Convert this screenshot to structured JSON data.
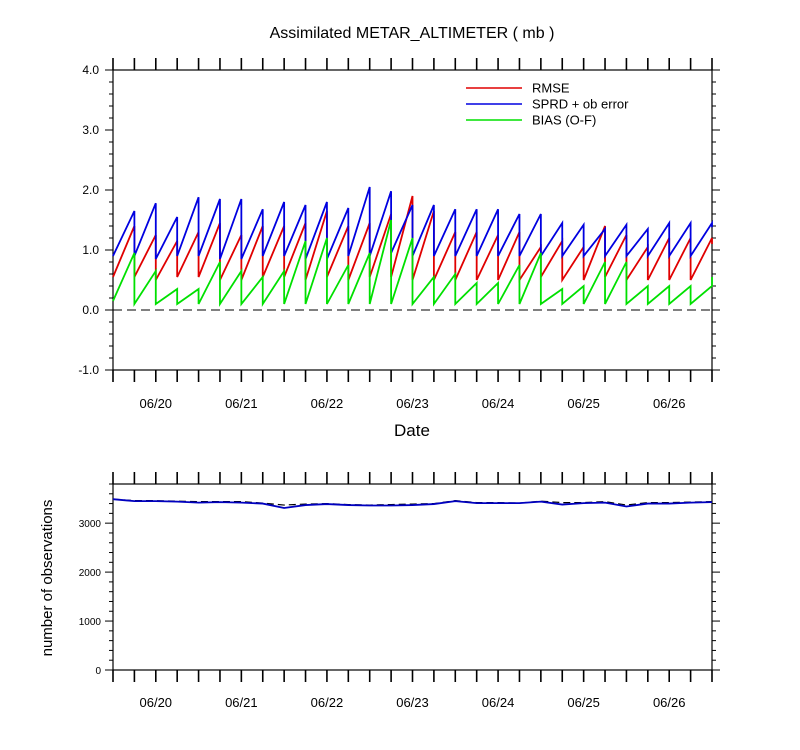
{
  "chart_data": [
    {
      "type": "line",
      "title": "Assimilated METAR_ALTIMETER ( mb )",
      "xlabel": "Date",
      "ylabel": "",
      "ylim": [
        -1.0,
        4.0
      ],
      "yticks": [
        "-1.0",
        "0.0",
        "1.0",
        "2.0",
        "3.0",
        "4.0"
      ],
      "xlim": [
        "06/19 12:00",
        "06/26 12:00"
      ],
      "xticks": [
        "06/20",
        "06/21",
        "06/22",
        "06/23",
        "06/24",
        "06/25",
        "06/26"
      ],
      "reference_line": {
        "y": 0.0,
        "style": "dashed"
      },
      "legend": {
        "placement": "top-right"
      },
      "time_series": {
        "start": "06/19 12:00",
        "step_hours": 6
      },
      "series": [
        {
          "name": "RMSE",
          "color": "#e00000",
          "pairs": [
            [
              0.55,
              1.4
            ],
            [
              0.55,
              1.25
            ],
            [
              0.5,
              1.15
            ],
            [
              0.55,
              1.3
            ],
            [
              0.55,
              1.45
            ],
            [
              0.5,
              1.25
            ],
            [
              0.5,
              1.4
            ],
            [
              0.55,
              1.4
            ],
            [
              0.55,
              1.45
            ],
            [
              0.5,
              1.65
            ],
            [
              0.55,
              1.4
            ],
            [
              0.5,
              1.45
            ],
            [
              0.55,
              1.6
            ],
            [
              0.55,
              1.9
            ],
            [
              0.5,
              1.65
            ],
            [
              0.5,
              1.3
            ],
            [
              0.5,
              1.3
            ],
            [
              0.5,
              1.25
            ],
            [
              0.5,
              1.3
            ],
            [
              0.5,
              1.05
            ],
            [
              0.55,
              1.15
            ],
            [
              0.5,
              1.05
            ],
            [
              0.5,
              1.4
            ],
            [
              0.55,
              1.25
            ],
            [
              0.5,
              1.05
            ],
            [
              0.5,
              1.2
            ],
            [
              0.5,
              1.2
            ],
            [
              0.5,
              1.2
            ]
          ],
          "last": 1.1
        },
        {
          "name": "SPRD + ob error",
          "color": "#0000e0",
          "pairs": [
            [
              0.9,
              1.65
            ],
            [
              0.9,
              1.78
            ],
            [
              0.85,
              1.55
            ],
            [
              0.9,
              1.88
            ],
            [
              0.9,
              1.85
            ],
            [
              0.85,
              1.85
            ],
            [
              0.85,
              1.68
            ],
            [
              0.9,
              1.8
            ],
            [
              0.9,
              1.75
            ],
            [
              0.85,
              1.8
            ],
            [
              0.85,
              1.7
            ],
            [
              0.9,
              2.05
            ],
            [
              0.9,
              1.98
            ],
            [
              0.95,
              1.75
            ],
            [
              0.9,
              1.75
            ],
            [
              0.9,
              1.68
            ],
            [
              0.9,
              1.68
            ],
            [
              0.9,
              1.68
            ],
            [
              0.9,
              1.6
            ],
            [
              0.9,
              1.6
            ],
            [
              0.9,
              1.45
            ],
            [
              0.9,
              1.42
            ],
            [
              0.9,
              1.35
            ],
            [
              0.9,
              1.42
            ],
            [
              0.9,
              1.35
            ],
            [
              0.9,
              1.45
            ],
            [
              0.9,
              1.45
            ],
            [
              0.9,
              1.45
            ]
          ],
          "last": 1.38
        },
        {
          "name": "BIAS (O-F)",
          "color": "#00e000",
          "pairs": [
            [
              0.15,
              0.95
            ],
            [
              0.1,
              0.65
            ],
            [
              0.1,
              0.35
            ],
            [
              0.1,
              0.35
            ],
            [
              0.1,
              0.8
            ],
            [
              0.1,
              0.65
            ],
            [
              0.1,
              0.55
            ],
            [
              0.1,
              0.65
            ],
            [
              0.1,
              1.15
            ],
            [
              0.1,
              1.2
            ],
            [
              0.1,
              0.75
            ],
            [
              0.1,
              0.95
            ],
            [
              0.1,
              1.5
            ],
            [
              0.1,
              1.2
            ],
            [
              0.1,
              0.55
            ],
            [
              0.1,
              0.6
            ],
            [
              0.1,
              0.45
            ],
            [
              0.1,
              0.45
            ],
            [
              0.1,
              0.75
            ],
            [
              0.1,
              0.95
            ],
            [
              0.1,
              0.35
            ],
            [
              0.1,
              0.4
            ],
            [
              0.1,
              0.8
            ],
            [
              0.1,
              0.8
            ],
            [
              0.1,
              0.4
            ],
            [
              0.1,
              0.4
            ],
            [
              0.1,
              0.4
            ],
            [
              0.1,
              0.4
            ]
          ],
          "last": 0.55
        }
      ]
    },
    {
      "type": "line",
      "title": "",
      "xlabel": "",
      "ylabel": "number of observations",
      "ylim": [
        0,
        3800
      ],
      "yticks": [
        "0",
        "1000",
        "2000",
        "3000"
      ],
      "xlim": [
        "06/19 12:00",
        "06/26 12:00"
      ],
      "xticks": [
        "06/20",
        "06/21",
        "06/22",
        "06/23",
        "06/24",
        "06/25",
        "06/26"
      ],
      "time_series": {
        "start": "06/19 12:00",
        "step_hours": 6
      },
      "series": [
        {
          "style": "dashed",
          "color": "#000000",
          "values": [
            3490,
            3460,
            3460,
            3450,
            3440,
            3440,
            3440,
            3410,
            3370,
            3390,
            3400,
            3380,
            3370,
            3380,
            3390,
            3400,
            3460,
            3420,
            3420,
            3410,
            3450,
            3420,
            3420,
            3440,
            3370,
            3420,
            3420,
            3430,
            3440
          ]
        },
        {
          "color": "#0000c0",
          "values": [
            3490,
            3450,
            3450,
            3440,
            3420,
            3430,
            3420,
            3400,
            3310,
            3370,
            3390,
            3370,
            3360,
            3360,
            3370,
            3390,
            3450,
            3410,
            3410,
            3410,
            3440,
            3380,
            3410,
            3420,
            3340,
            3400,
            3400,
            3420,
            3430
          ]
        }
      ]
    }
  ]
}
